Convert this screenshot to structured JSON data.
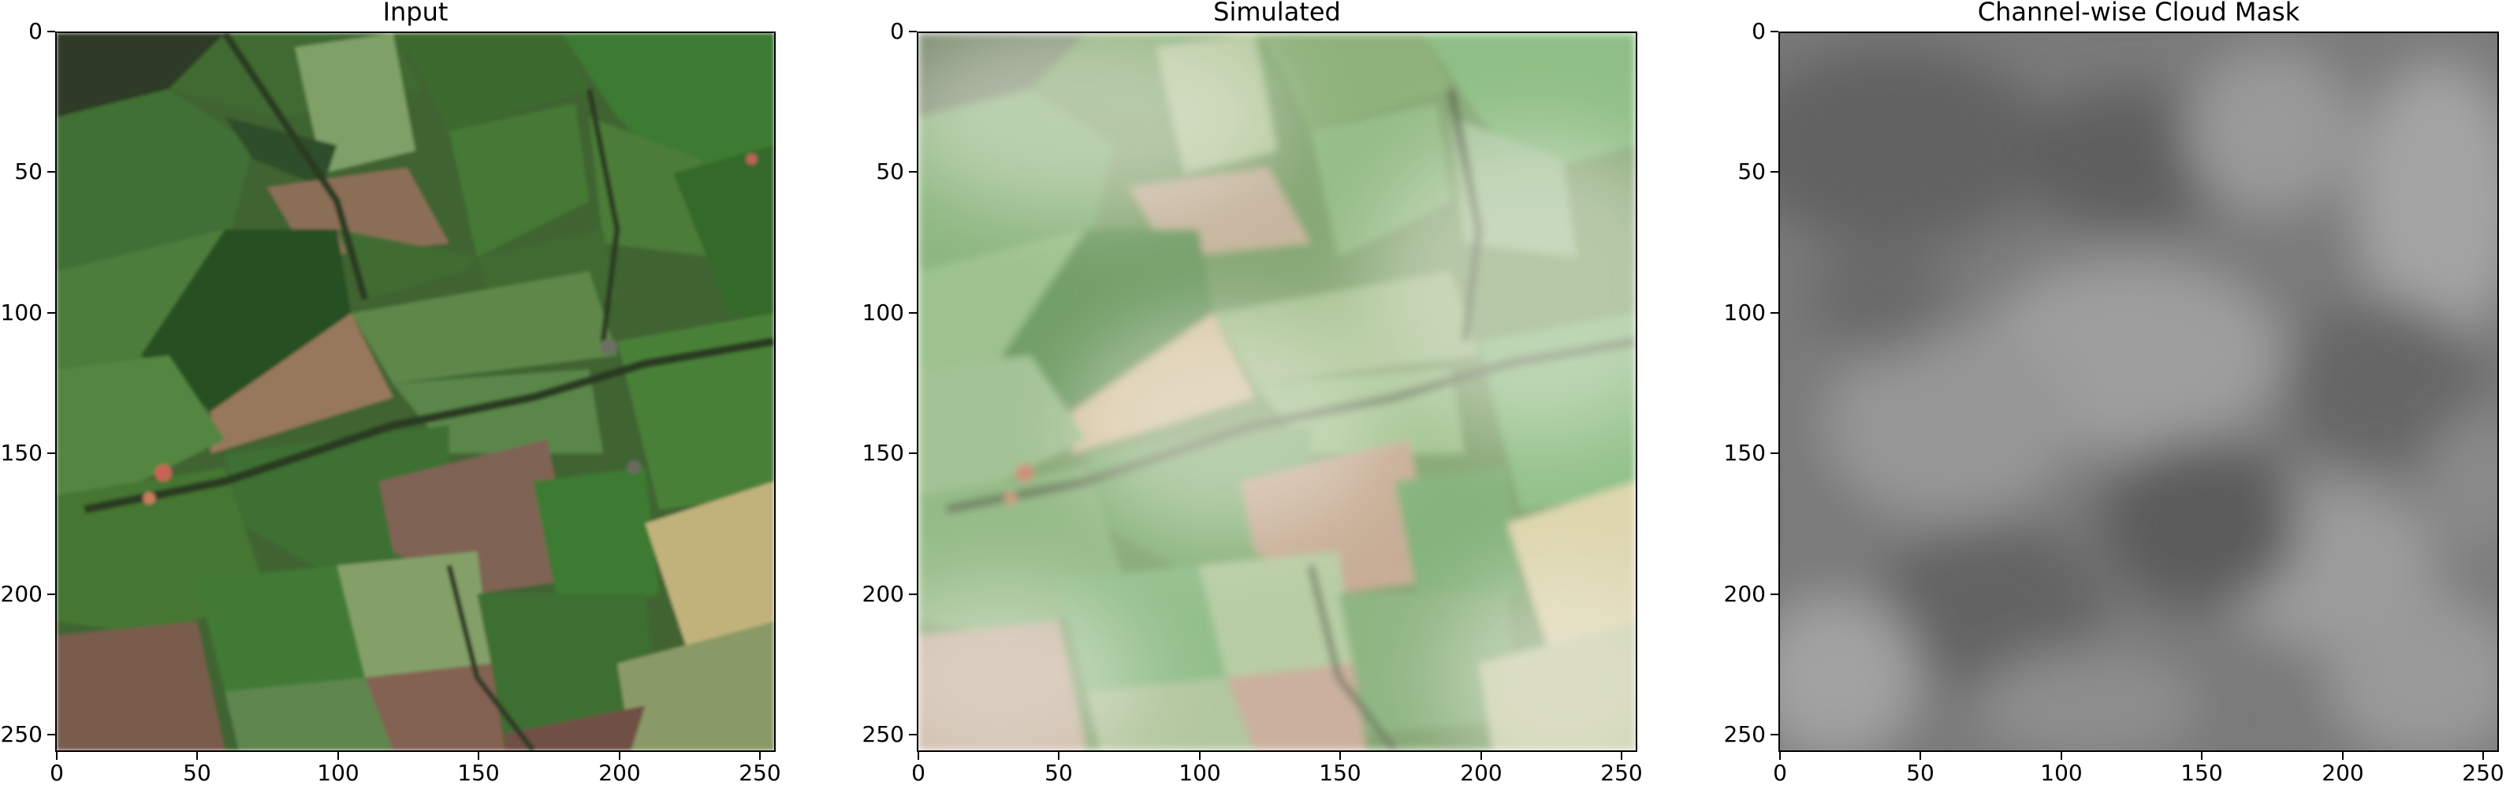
{
  "figure": {
    "panels": [
      {
        "title": "Input",
        "kind": "input"
      },
      {
        "title": "Simulated",
        "kind": "simulated"
      },
      {
        "title": "Channel-wise Cloud Mask",
        "kind": "mask"
      }
    ],
    "y_ticks": [
      "0",
      "50",
      "100",
      "150",
      "200",
      "250"
    ],
    "x_ticks": [
      "0",
      "50",
      "100",
      "150",
      "200",
      "250"
    ]
  }
}
